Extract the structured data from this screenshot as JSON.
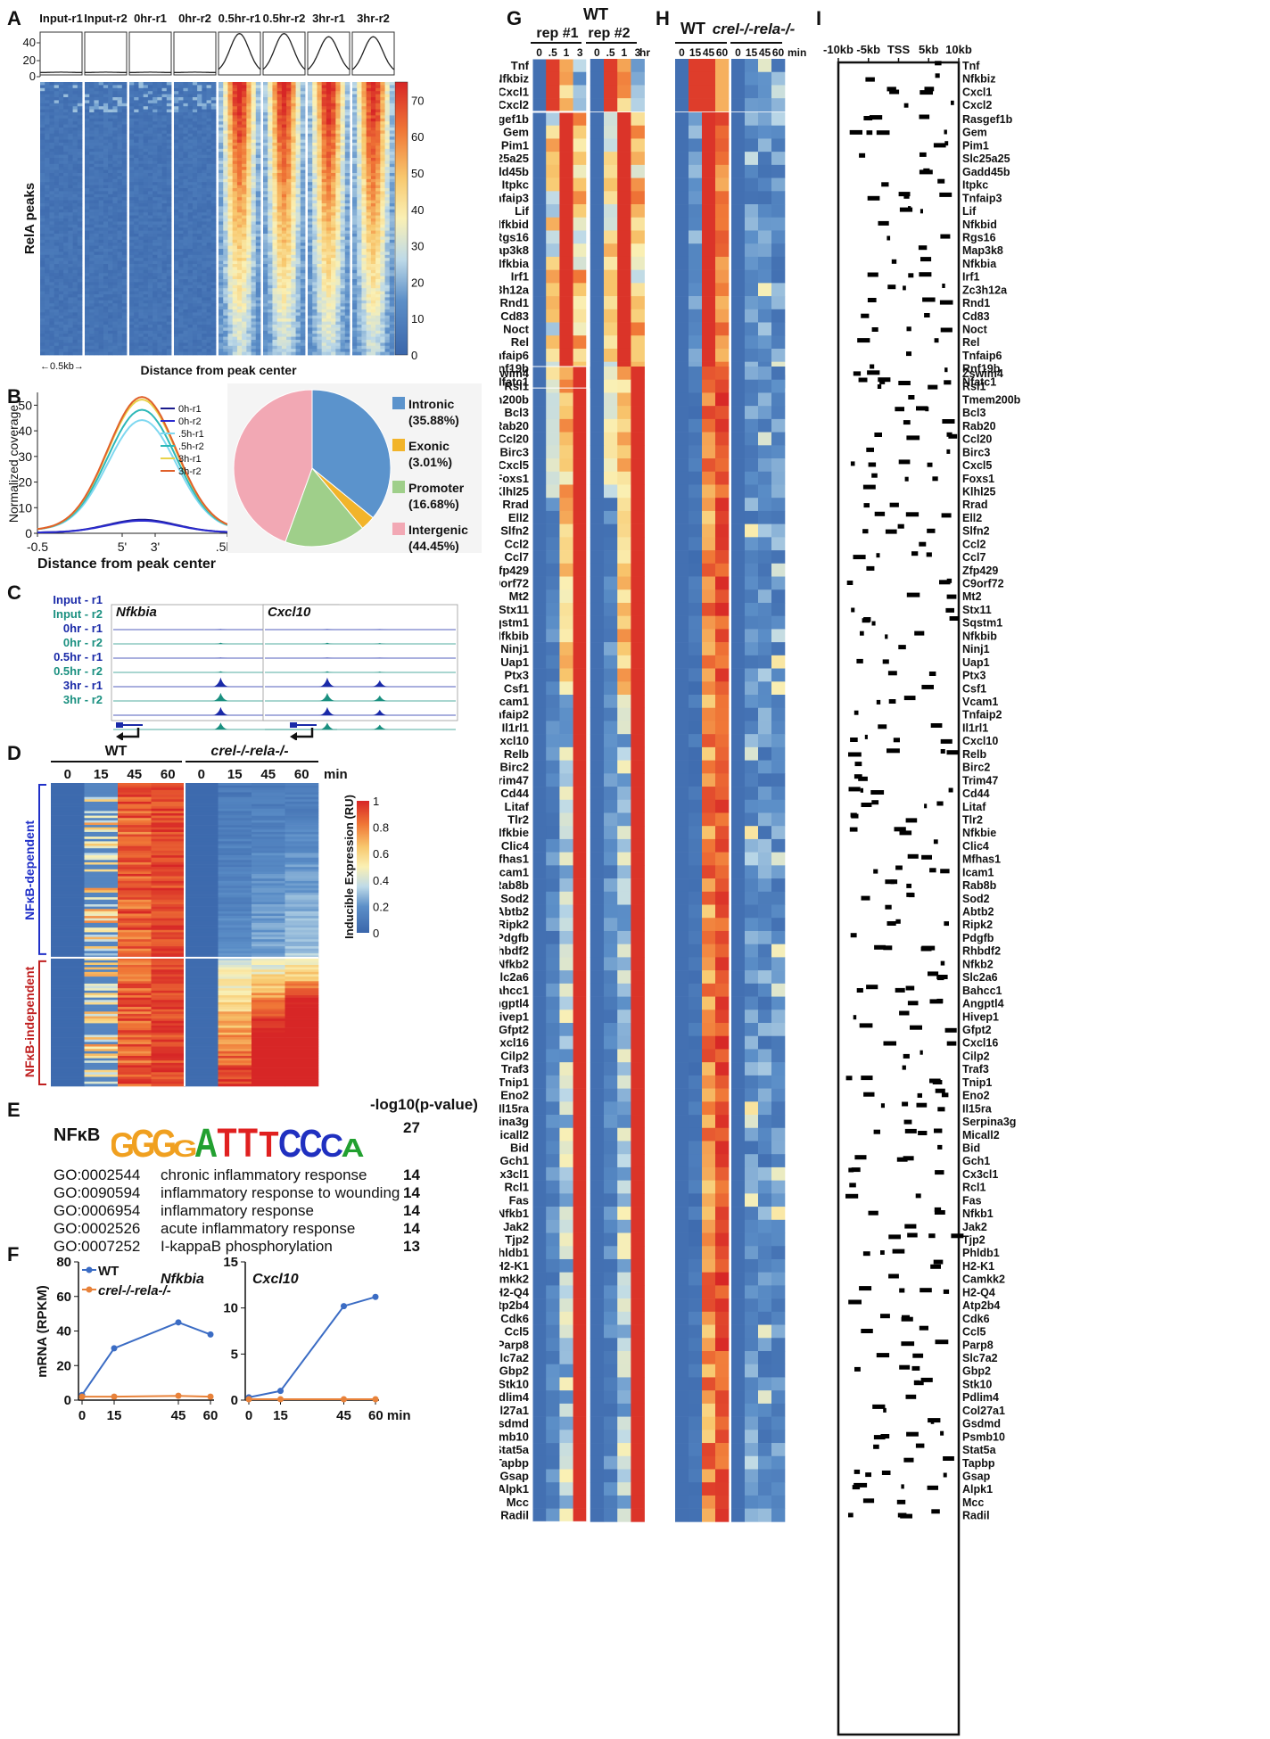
{
  "panels": [
    "A",
    "B",
    "C",
    "D",
    "E",
    "F",
    "G",
    "H",
    "I"
  ],
  "panel_a": {
    "columns": [
      "Input-r1",
      "Input-r2",
      "0hr-r1",
      "0hr-r2",
      "0.5hr-r1",
      "0.5hr-r2",
      "3hr-r1",
      "3hr-r2"
    ],
    "yaxis_ticks": [
      "40",
      "20",
      "0"
    ],
    "ylabel": "RelA peaks",
    "xlabel": "Distance from peak center",
    "scale": "←0.5kb→",
    "colorbar_ticks": [
      "70",
      "60",
      "50",
      "40",
      "30",
      "20",
      "10",
      "0"
    ]
  },
  "panel_b": {
    "chart_data": [
      {
        "type": "line",
        "xlabel": "Distance from peak center",
        "ylabel": "Normalized coverage",
        "x_ticks": [
          "-0.5",
          "5'",
          "3'",
          ".5kb"
        ],
        "y_ticks": [
          "0",
          "10",
          "20",
          "30",
          "40",
          "50"
        ],
        "ylim": [
          0,
          55
        ],
        "series": [
          {
            "name": "0h-r1",
            "peak": 5,
            "color": "#1a1a8c"
          },
          {
            "name": "0h-r2",
            "peak": 4.6,
            "color": "#2b2bd0"
          },
          {
            "name": ".5h-r1",
            "peak": 43,
            "color": "#7fd8f0"
          },
          {
            "name": ".5h-r2",
            "peak": 47,
            "color": "#2db8b8"
          },
          {
            "name": "3h-r1",
            "peak": 51,
            "color": "#e8d24a"
          },
          {
            "name": "3h-r2",
            "peak": 52,
            "color": "#e0602a"
          }
        ]
      },
      {
        "type": "pie",
        "categories": [
          "Intronic",
          "Exonic",
          "Promoter",
          "Intergenic"
        ],
        "values": [
          35.88,
          3.01,
          16.68,
          44.45
        ],
        "labels": [
          "(35.88%)",
          "(3.01%)",
          "(16.68%)",
          "(44.45%)"
        ],
        "colors": [
          "#5b93cc",
          "#f2b42a",
          "#9fcf8a",
          "#f2a8b4"
        ]
      }
    ]
  },
  "panel_c": {
    "tracks": [
      "Input - r1",
      "Input - r2",
      "0hr - r1",
      "0hr - r2",
      "0.5hr - r1",
      "0.5hr - r2",
      "3hr - r1",
      "3hr - r2"
    ],
    "genes": [
      "Nfkbia",
      "Cxcl10"
    ]
  },
  "panel_d": {
    "groups": [
      "WT",
      "crel-/-rela-/-"
    ],
    "timepoints": [
      "0",
      "15",
      "45",
      "60",
      "0",
      "15",
      "45",
      "60"
    ],
    "unit": "min",
    "clusters": [
      "NFκB-dependent",
      "NFκB-independent"
    ],
    "colorbar_label": "Inducible Expression (RU)",
    "colorbar_ticks": [
      "1",
      "0.8",
      "0.6",
      "0.4",
      "0.2",
      "0"
    ]
  },
  "panel_e": {
    "header": "-log10(p-value)",
    "motif_name": "NFκB",
    "motif": [
      "G",
      "G",
      "G",
      "G",
      "A",
      "T",
      "T",
      "T",
      "C",
      "C",
      "C",
      "A"
    ],
    "motif_score": "27",
    "rows": [
      {
        "id": "GO:0002544",
        "term": "chronic inflammatory response",
        "score": "14"
      },
      {
        "id": "GO:0090594",
        "term": "inflammatory response to wounding",
        "score": "14"
      },
      {
        "id": "GO:0006954",
        "term": "inflammatory response",
        "score": "14"
      },
      {
        "id": "GO:0002526",
        "term": "acute inflammatory response",
        "score": "14"
      },
      {
        "id": "GO:0007252",
        "term": "I-kappaB phosphorylation",
        "score": "13"
      }
    ]
  },
  "panel_f": {
    "chart_data": [
      {
        "type": "line",
        "title": "Nfkbia",
        "ylabel": "mRNA (RPKM)",
        "x": [
          0,
          15,
          45,
          60
        ],
        "x_ticks": [
          "0",
          "15",
          "45",
          "60"
        ],
        "y_ticks": [
          "0",
          "20",
          "40",
          "60",
          "80"
        ],
        "ylim": [
          0,
          80
        ],
        "series": [
          {
            "name": "WT",
            "values": [
              3,
              30,
              45,
              38
            ],
            "color": "#3b6cc4"
          },
          {
            "name": "crel-/-rela-/-",
            "values": [
              2,
              2,
              2.5,
              2
            ],
            "color": "#e8823a"
          }
        ]
      },
      {
        "type": "line",
        "title": "Cxcl10",
        "x": [
          0,
          15,
          45,
          60
        ],
        "x_ticks": [
          "0",
          "15",
          "45",
          "60 min"
        ],
        "y_ticks": [
          "0",
          "5",
          "10",
          "15"
        ],
        "ylim": [
          0,
          15
        ],
        "series": [
          {
            "name": "WT",
            "values": [
              0.3,
              1,
              10.2,
              11.2
            ],
            "color": "#3b6cc4"
          },
          {
            "name": "crel-/-rela-/-",
            "values": [
              0.1,
              0.1,
              0.1,
              0.1
            ],
            "color": "#e8823a"
          }
        ]
      }
    ],
    "legend": [
      "WT",
      "crel-/-rela-/-"
    ]
  },
  "panel_g": {
    "title": "WT",
    "reps": [
      "rep #1",
      "rep #2"
    ],
    "timepoints": [
      "0",
      ".5",
      "1",
      "3",
      "0",
      ".5",
      "1",
      "3"
    ],
    "unit": "hr"
  },
  "panel_h": {
    "groups": [
      "WT",
      "crel-/-rela-/-"
    ],
    "timepoints": [
      "0",
      "15",
      "45",
      "60",
      "0",
      "15",
      "45",
      "60"
    ],
    "unit": "min"
  },
  "panel_i": {
    "axis": [
      "-10kb",
      "-5kb",
      "TSS",
      "5kb",
      "10kb"
    ]
  },
  "gene_blocks": [
    [
      "Tnf",
      "Nfkbiz",
      "Cxcl1",
      "Cxcl2"
    ],
    [
      "Rasgef1b",
      "Gem",
      "Pim1",
      "Slc25a25",
      "Gadd45b",
      "Itpkc",
      "Tnfaip3",
      "Lif",
      "Nfkbid",
      "Rgs16",
      "Map3k8",
      "Nfkbia",
      "Irf1",
      "Zc3h12a",
      "Rnd1",
      "Cd83",
      "Noct",
      "Rel",
      "Tnfaip6",
      "Rnf19b",
      "Nfatc1"
    ],
    [
      "Zswim4",
      "Rsl1",
      "Tmem200b",
      "Bcl3",
      "Rab20",
      "Ccl20",
      "Birc3",
      "Cxcl5",
      "Foxs1",
      "Klhl25",
      "Rrad",
      "Ell2",
      "Slfn2",
      "Ccl2",
      "Ccl7",
      "Zfp429",
      "C9orf72",
      "Mt2",
      "Stx11",
      "Sqstm1",
      "Nfkbib",
      "Ninj1",
      "Uap1",
      "Ptx3",
      "Csf1",
      "Vcam1",
      "Tnfaip2",
      "Il1rl1",
      "Cxcl10",
      "Relb",
      "Birc2",
      "Trim47",
      "Cd44",
      "Litaf",
      "Tlr2",
      "Nfkbie",
      "Clic4",
      "Mfhas1",
      "Icam1",
      "Rab8b",
      "Sod2",
      "Abtb2",
      "Ripk2",
      "Pdgfb",
      "Rhbdf2",
      "Nfkb2",
      "Slc2a6",
      "Bahcc1",
      "Angptl4",
      "Hivep1",
      "Gfpt2",
      "Cxcl16",
      "Cilp2",
      "Traf3",
      "Tnip1",
      "Eno2",
      "Il15ra",
      "Serpina3g",
      "Micall2",
      "Bid",
      "Gch1",
      "Cx3cl1",
      "Rcl1",
      "Fas",
      "Nfkb1",
      "Jak2",
      "Tjp2",
      "Phldb1",
      "H2-K1",
      "Camkk2",
      "H2-Q4",
      "Atp2b4",
      "Cdk6",
      "Ccl5",
      "Parp8",
      "Slc7a2",
      "Gbp2",
      "Stk10",
      "Pdlim4",
      "Col27a1",
      "Gsdmd",
      "Psmb10",
      "Stat5a",
      "Tapbp",
      "Gsap",
      "Alpk1",
      "Mcc",
      "Radil"
    ]
  ]
}
